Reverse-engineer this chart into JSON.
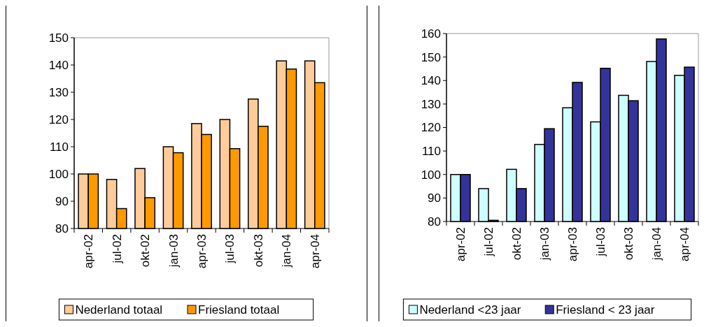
{
  "chart_data": [
    {
      "type": "bar",
      "categories": [
        "apr-02",
        "jul-02",
        "okt-02",
        "jan-03",
        "apr-03",
        "jul-03",
        "okt-03",
        "jan-04",
        "apr-04"
      ],
      "series": [
        {
          "name": "Nederland totaal",
          "color": "#ffcc99",
          "values": [
            100,
            98,
            102,
            110,
            118.5,
            120,
            127.5,
            141.5,
            141.5
          ]
        },
        {
          "name": "Friesland totaal",
          "color": "#ff9900",
          "values": [
            100,
            87.3,
            91.3,
            107.8,
            114.5,
            109.3,
            117.5,
            138.5,
            133.5
          ]
        }
      ],
      "ylim": [
        80,
        150
      ],
      "yticks": [
        80,
        90,
        100,
        110,
        120,
        130,
        140,
        150
      ],
      "grid": false,
      "legend": "bottom"
    },
    {
      "type": "bar",
      "categories": [
        "apr-02",
        "jul-02",
        "okt-02",
        "jan-03",
        "apr-03",
        "jul-03",
        "okt-03",
        "jan-04",
        "apr-04"
      ],
      "series": [
        {
          "name": "Nederland <23 jaar",
          "color": "#ccffff",
          "values": [
            100,
            94,
            102.2,
            112.8,
            128.4,
            122.4,
            133.7,
            148.1,
            142.2
          ]
        },
        {
          "name": "Friesland < 23 jaar",
          "color": "#333399",
          "values": [
            100,
            80.5,
            94,
            119.5,
            139.2,
            145.2,
            131.4,
            157.7,
            145.7
          ]
        }
      ],
      "ylim": [
        80,
        160
      ],
      "yticks": [
        80,
        90,
        100,
        110,
        120,
        130,
        140,
        150,
        160
      ],
      "grid": false,
      "legend": "bottom"
    }
  ]
}
